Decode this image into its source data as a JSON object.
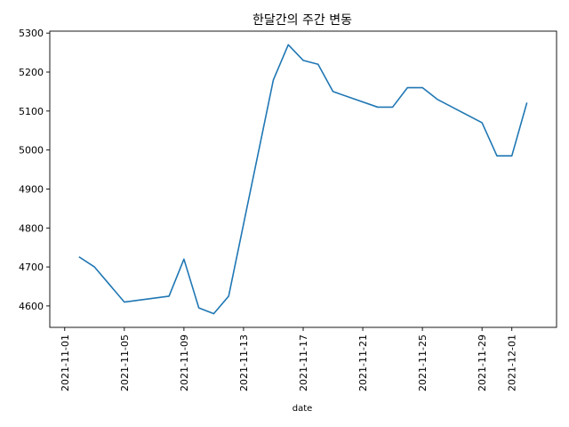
{
  "chart_data": {
    "type": "line",
    "title": "한달간의 주간 변동",
    "xlabel": "date",
    "ylabel": "",
    "x_axis_type": "date",
    "xlim": [
      "2021-10-31",
      "2021-12-04"
    ],
    "ylim": [
      4545,
      5305
    ],
    "grid": false,
    "legend": "none",
    "x_ticks": [
      "2021-11-01",
      "2021-11-05",
      "2021-11-09",
      "2021-11-13",
      "2021-11-17",
      "2021-11-21",
      "2021-11-25",
      "2021-11-29",
      "2021-12-01"
    ],
    "y_ticks": [
      4600,
      4700,
      4800,
      4900,
      5000,
      5100,
      5200,
      5300
    ],
    "series": [
      {
        "color": "#1f77b4",
        "points": [
          {
            "x": "2021-11-02",
            "y": 4725
          },
          {
            "x": "2021-11-03",
            "y": 4700
          },
          {
            "x": "2021-11-04",
            "y": 4655
          },
          {
            "x": "2021-11-05",
            "y": 4610
          },
          {
            "x": "2021-11-08",
            "y": 4625
          },
          {
            "x": "2021-11-09",
            "y": 4720
          },
          {
            "x": "2021-11-10",
            "y": 4595
          },
          {
            "x": "2021-11-11",
            "y": 4580
          },
          {
            "x": "2021-11-12",
            "y": 4625
          },
          {
            "x": "2021-11-15",
            "y": 5180
          },
          {
            "x": "2021-11-16",
            "y": 5270
          },
          {
            "x": "2021-11-17",
            "y": 5230
          },
          {
            "x": "2021-11-18",
            "y": 5220
          },
          {
            "x": "2021-11-19",
            "y": 5150
          },
          {
            "x": "2021-11-22",
            "y": 5110
          },
          {
            "x": "2021-11-23",
            "y": 5110
          },
          {
            "x": "2021-11-24",
            "y": 5160
          },
          {
            "x": "2021-11-25",
            "y": 5160
          },
          {
            "x": "2021-11-26",
            "y": 5130
          },
          {
            "x": "2021-11-29",
            "y": 5070
          },
          {
            "x": "2021-11-30",
            "y": 4985
          },
          {
            "x": "2021-12-01",
            "y": 4985
          },
          {
            "x": "2021-12-02",
            "y": 5120
          }
        ]
      }
    ]
  }
}
